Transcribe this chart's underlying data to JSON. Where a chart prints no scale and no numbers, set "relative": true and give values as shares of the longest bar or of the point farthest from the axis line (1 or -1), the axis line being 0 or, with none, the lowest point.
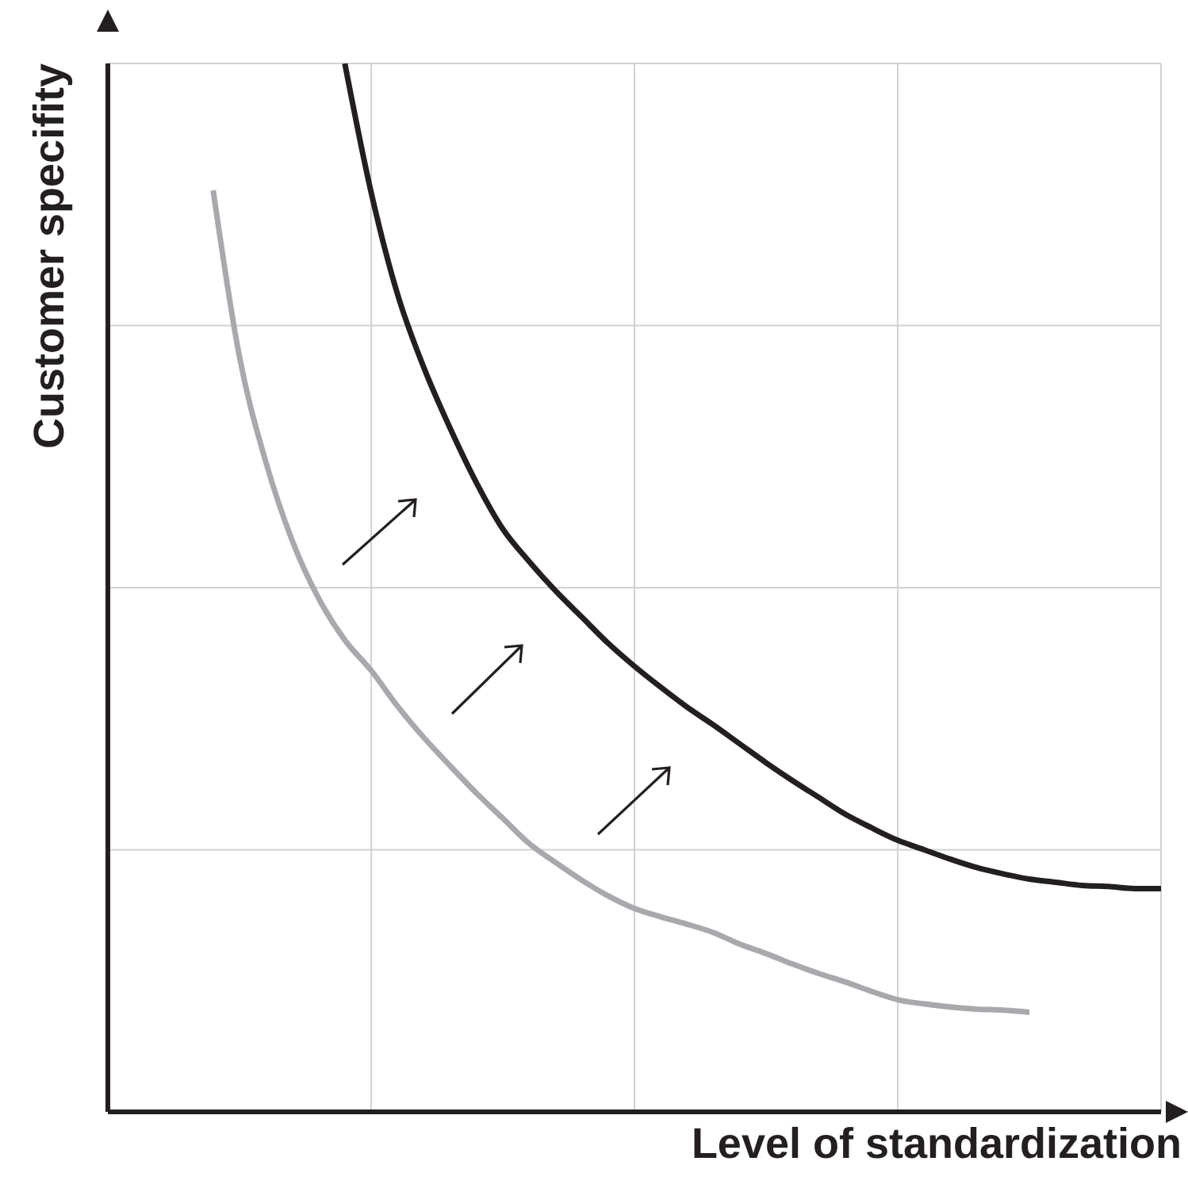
{
  "chart_data": {
    "type": "line",
    "relative": true,
    "xlabel": "Level of standardization",
    "ylabel": "Customer specifity",
    "grid": true,
    "marker": "none",
    "line_style": "solid",
    "categories": [
      null,
      null,
      null,
      null,
      null,
      null,
      null,
      null,
      null,
      null,
      null,
      null,
      null,
      null,
      null,
      null,
      null,
      null,
      null,
      null,
      null,
      null,
      null,
      null,
      null,
      null,
      null,
      null,
      null,
      null,
      null,
      null,
      null,
      null,
      null,
      null,
      null,
      null,
      null,
      null,
      null
    ],
    "series": [
      {
        "color": "#a7a9ac",
        "values": [
          null,
          null,
          null,
          null,
          0.879,
          0.72,
          0.62,
          0.545,
          0.49,
          0.45,
          0.421,
          0.387,
          0.357,
          0.33,
          0.304,
          0.28,
          0.256,
          0.238,
          0.221,
          0.206,
          0.194,
          0.186,
          0.179,
          0.171,
          0.16,
          0.151,
          0.141,
          0.132,
          0.124,
          0.115,
          0.107,
          0.103,
          0.1,
          0.098,
          0.097,
          0.095,
          null,
          null,
          null,
          null,
          null
        ]
      },
      {
        "color": "#231f20",
        "values": [
          null,
          null,
          null,
          null,
          null,
          null,
          null,
          null,
          null,
          1.0,
          0.877,
          0.78,
          0.71,
          0.652,
          0.6,
          0.556,
          0.525,
          0.497,
          0.472,
          0.447,
          0.425,
          0.405,
          0.386,
          0.369,
          0.351,
          0.333,
          0.316,
          0.3,
          0.284,
          0.271,
          0.259,
          0.25,
          0.241,
          0.233,
          0.227,
          0.222,
          0.219,
          0.216,
          0.215,
          0.213,
          0.213
        ]
      }
    ]
  }
}
